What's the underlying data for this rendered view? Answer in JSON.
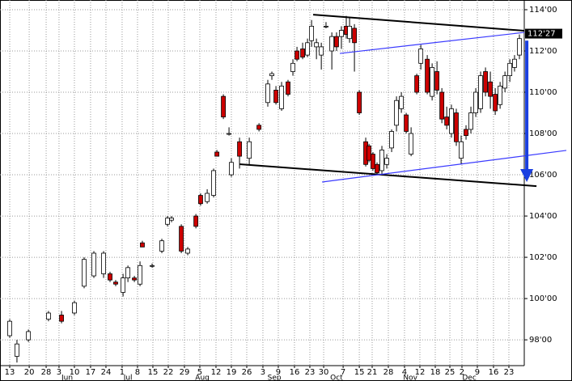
{
  "chart_data": {
    "type": "candlestick",
    "up_color": "#ffffff",
    "down_color": "#cc0000",
    "xlim": [
      -0.62,
      32.78
    ],
    "ylim": [
      96.75,
      114.47
    ],
    "grid": true,
    "xticks": [
      {
        "value": 0,
        "label": "13"
      },
      {
        "value": 1.24,
        "label": "20"
      },
      {
        "value": 2.32,
        "label": "28"
      },
      {
        "value": 3.14,
        "label": "3"
      },
      {
        "value": 4.12,
        "label": "10"
      },
      {
        "value": 5.15,
        "label": "17"
      },
      {
        "value": 6.13,
        "label": "24"
      },
      {
        "value": 7.16,
        "label": "1"
      },
      {
        "value": 8.14,
        "label": "8"
      },
      {
        "value": 9.12,
        "label": "15"
      },
      {
        "value": 10.1,
        "label": "22"
      },
      {
        "value": 11.13,
        "label": "29"
      },
      {
        "value": 12.11,
        "label": "5"
      },
      {
        "value": 13.14,
        "label": "12"
      },
      {
        "value": 14.12,
        "label": "19"
      },
      {
        "value": 15.1,
        "label": "26"
      },
      {
        "value": 16.13,
        "label": "3"
      },
      {
        "value": 17.11,
        "label": "9"
      },
      {
        "value": 18.14,
        "label": "16"
      },
      {
        "value": 19.12,
        "label": "23"
      },
      {
        "value": 20.0,
        "label": "30"
      },
      {
        "value": 21.24,
        "label": "7"
      },
      {
        "value": 22.27,
        "label": "15"
      },
      {
        "value": 23.09,
        "label": "21"
      },
      {
        "value": 24.12,
        "label": "28"
      },
      {
        "value": 25.15,
        "label": "4"
      },
      {
        "value": 26.13,
        "label": "12"
      },
      {
        "value": 27.11,
        "label": "18"
      },
      {
        "value": 28.04,
        "label": "25"
      },
      {
        "value": 28.81,
        "label": "2"
      },
      {
        "value": 29.79,
        "label": "9"
      },
      {
        "value": 30.82,
        "label": "16"
      },
      {
        "value": 31.8,
        "label": "23"
      }
    ],
    "month_labels": [
      {
        "value": 3.66,
        "label": "Jun"
      },
      {
        "value": 7.53,
        "label": "Jul"
      },
      {
        "value": 12.27,
        "label": "Aug"
      },
      {
        "value": 16.86,
        "label": "Sep"
      },
      {
        "value": 20.82,
        "label": "Oct"
      },
      {
        "value": 25.52,
        "label": "Nov"
      },
      {
        "value": 29.28,
        "label": "Dec"
      }
    ],
    "yticks": [
      {
        "value": 98,
        "label": "98'00"
      },
      {
        "value": 100,
        "label": "100'00"
      },
      {
        "value": 102,
        "label": "102'00"
      },
      {
        "value": 104,
        "label": "104'00"
      },
      {
        "value": 106,
        "label": "106'00"
      },
      {
        "value": 108,
        "label": "108'00"
      },
      {
        "value": 110,
        "label": "110'00"
      },
      {
        "value": 112,
        "label": "112'00"
      },
      {
        "value": 114,
        "label": "114'00"
      }
    ],
    "last_price": {
      "value": 112.84,
      "label": "112'27"
    },
    "x": [
      0,
      0.46,
      1.19,
      2.47,
      3.3,
      4.12,
      4.74,
      5.36,
      5.98,
      6.39,
      6.75,
      7.22,
      7.53,
      7.94,
      8.3,
      8.45,
      9.07,
      9.69,
      10.05,
      10.31,
      10.93,
      11.34,
      11.86,
      12.16,
      12.58,
      12.99,
      13.2,
      13.61,
      13.97,
      14.12,
      14.64,
      15.26,
      15.88,
      16.44,
      16.7,
      16.96,
      17.32,
      17.73,
      18.04,
      18.3,
      18.66,
      18.97,
      19.23,
      19.54,
      19.85,
      20.15,
      20.52,
      20.82,
      21.13,
      21.44,
      21.65,
      21.96,
      22.27,
      22.68,
      22.89,
      23.14,
      23.4,
      23.71,
      24.02,
      24.33,
      24.64,
      24.95,
      25.26,
      25.57,
      25.93,
      26.19,
      26.6,
      26.91,
      27.22,
      27.53,
      27.84,
      28.14,
      28.45,
      28.76,
      29.07,
      29.38,
      29.69,
      30.0,
      30.31,
      30.62,
      30.93,
      31.24,
      31.55,
      31.86,
      32.16,
      32.47
    ],
    "open": [
      98.2,
      97.2,
      98.0,
      99.0,
      99.2,
      99.3,
      100.6,
      101.1,
      101.2,
      101.2,
      100.8,
      100.3,
      101.0,
      101.0,
      100.7,
      102.7,
      101.6,
      102.3,
      103.6,
      103.8,
      103.5,
      102.2,
      104.0,
      105.0,
      104.7,
      105.0,
      107.1,
      109.8,
      108.0,
      106.0,
      107.6,
      106.8,
      108.4,
      109.5,
      110.8,
      110.1,
      109.2,
      110.5,
      111.0,
      112.0,
      112.1,
      111.8,
      112.5,
      112.2,
      111.8,
      113.2,
      112.0,
      112.7,
      112.7,
      113.2,
      112.6,
      113.1,
      110.0,
      107.6,
      107.4,
      107.0,
      106.5,
      106.2,
      106.5,
      107.3,
      108.4,
      109.2,
      108.9,
      107.0,
      110.8,
      111.4,
      111.6,
      109.8,
      111.0,
      110.0,
      108.8,
      108.0,
      109.0,
      106.8,
      108.2,
      108.2,
      109.0,
      109.2,
      111.0,
      110.5,
      109.9,
      109.4,
      110.2,
      110.8,
      111.2,
      111.8
    ],
    "high": [
      99.0,
      98.0,
      98.5,
      99.4,
      99.4,
      99.9,
      102.0,
      102.3,
      102.3,
      101.3,
      100.9,
      101.2,
      101.6,
      101.1,
      101.8,
      102.8,
      101.7,
      102.9,
      104.0,
      104.0,
      103.6,
      102.5,
      104.1,
      105.1,
      105.3,
      106.3,
      107.2,
      109.9,
      108.3,
      106.8,
      107.8,
      107.8,
      108.5,
      110.6,
      111.0,
      110.3,
      110.5,
      110.6,
      111.6,
      112.2,
      112.4,
      112.6,
      113.5,
      112.6,
      112.4,
      113.4,
      112.9,
      112.9,
      113.2,
      113.7,
      113.6,
      113.3,
      110.1,
      107.8,
      107.5,
      107.1,
      106.6,
      107.4,
      107.0,
      108.2,
      109.8,
      110.0,
      109.0,
      108.3,
      110.9,
      112.3,
      111.8,
      111.4,
      111.5,
      110.2,
      109.3,
      109.4,
      109.2,
      107.9,
      108.4,
      109.3,
      110.2,
      111.0,
      111.2,
      111.0,
      110.2,
      110.5,
      111.0,
      111.6,
      111.8,
      112.8
    ],
    "low": [
      98.1,
      96.9,
      97.9,
      98.9,
      98.8,
      99.2,
      100.5,
      101.0,
      101.0,
      100.8,
      100.6,
      100.1,
      100.8,
      100.8,
      100.6,
      102.5,
      101.5,
      102.2,
      103.5,
      103.7,
      102.2,
      102.1,
      103.4,
      104.5,
      104.6,
      104.9,
      106.9,
      108.7,
      107.9,
      105.9,
      106.3,
      106.5,
      108.1,
      109.3,
      110.6,
      109.4,
      109.1,
      109.8,
      110.8,
      111.5,
      111.6,
      111.7,
      112.2,
      111.6,
      111.1,
      113.1,
      111.1,
      112.0,
      112.1,
      112.6,
      112.4,
      111.0,
      108.9,
      106.4,
      106.6,
      106.2,
      106.0,
      106.0,
      106.3,
      107.1,
      108.1,
      109.0,
      108.0,
      106.9,
      109.9,
      111.1,
      109.9,
      109.6,
      109.9,
      108.5,
      108.2,
      107.8,
      107.4,
      106.5,
      107.7,
      108.0,
      108.8,
      109.0,
      109.8,
      109.2,
      108.9,
      109.2,
      110.0,
      110.5,
      111.0,
      111.6
    ],
    "close": [
      98.9,
      97.8,
      98.4,
      99.3,
      98.9,
      99.8,
      101.9,
      102.2,
      102.2,
      100.9,
      100.7,
      101.0,
      101.5,
      100.9,
      101.6,
      102.5,
      101.6,
      102.8,
      103.9,
      103.9,
      102.3,
      102.4,
      103.5,
      104.6,
      105.1,
      106.2,
      106.9,
      108.8,
      108.0,
      106.6,
      106.9,
      107.6,
      108.2,
      110.4,
      110.9,
      109.5,
      110.3,
      109.9,
      111.4,
      111.6,
      111.7,
      112.4,
      113.2,
      112.4,
      112.2,
      113.2,
      112.7,
      112.2,
      113.0,
      112.8,
      113.2,
      112.4,
      109.0,
      106.5,
      106.7,
      106.3,
      106.1,
      107.2,
      106.8,
      108.1,
      109.6,
      109.8,
      108.1,
      108.0,
      110.0,
      112.1,
      110.0,
      111.2,
      110.1,
      108.7,
      108.4,
      109.2,
      107.6,
      107.6,
      107.9,
      109.0,
      110.0,
      110.8,
      110.0,
      109.8,
      109.1,
      110.3,
      110.8,
      111.4,
      111.6,
      112.6
    ],
    "trend_lines": [
      {
        "color": "#000000",
        "x": [
          19.33,
          32.78
        ],
        "y": [
          113.76,
          112.98
        ]
      },
      {
        "color": "#000000",
        "x": [
          14.64,
          33.56
        ],
        "y": [
          106.51,
          105.45
        ]
      },
      {
        "color": "#3a3aff",
        "x": [
          21.03,
          32.78
        ],
        "y": [
          111.88,
          112.9
        ]
      },
      {
        "color": "#3a3aff",
        "x": [
          19.9,
          35.46
        ],
        "y": [
          105.65,
          107.18
        ]
      }
    ],
    "arrow": {
      "color": "#1a3fe0",
      "x": 32.94,
      "y": [
        112.5,
        105.65
      ]
    }
  }
}
